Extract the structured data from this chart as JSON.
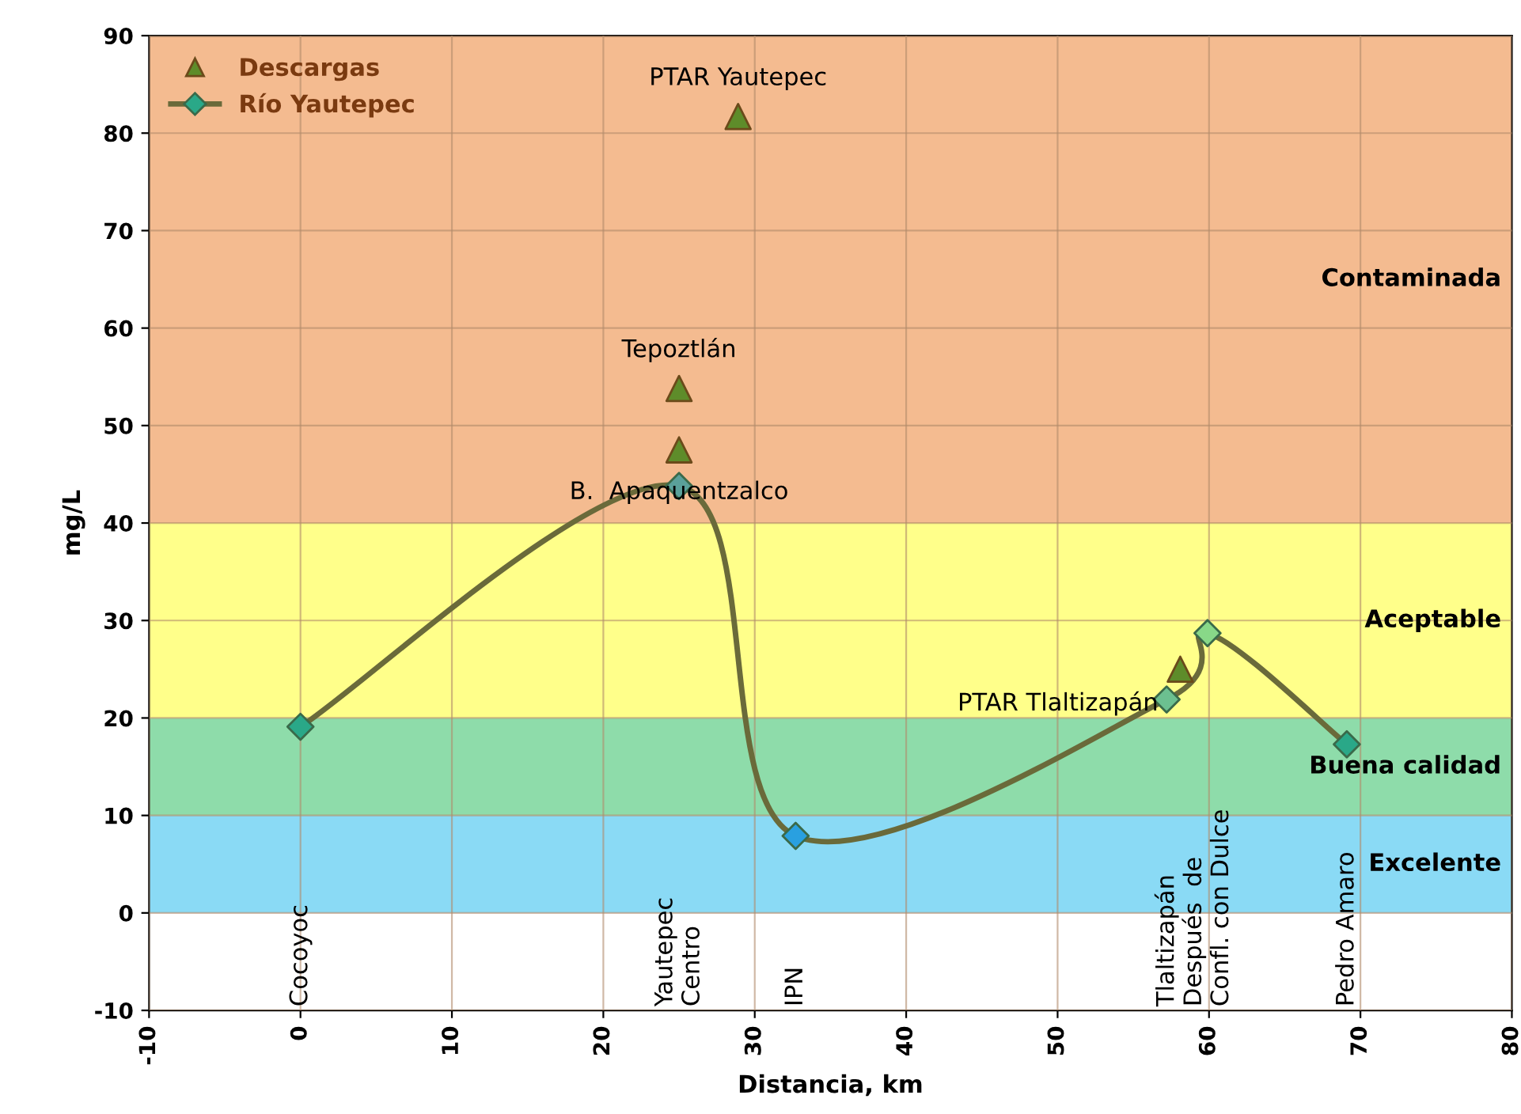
{
  "chart_data": {
    "type": "line",
    "xlabel": "Distancia, km",
    "ylabel": "mg/L",
    "xlim": [
      -10,
      80
    ],
    "xticks": [
      -10,
      0,
      10,
      20,
      30,
      40,
      50,
      60,
      70,
      80
    ],
    "ylim": [
      -10,
      90
    ],
    "yticks": [
      -10,
      0,
      10,
      20,
      30,
      40,
      50,
      60,
      70,
      80,
      90
    ],
    "grid": true,
    "legend": "top left",
    "series": [
      {
        "name": "Descargas",
        "type": "scatter",
        "marker": "triangle",
        "color": "#5e8c2a",
        "x": [
          28.9,
          25,
          25,
          58.1
        ],
        "values": [
          81.7,
          53.8,
          47.5,
          25
        ]
      },
      {
        "name": "Río Yautepec",
        "marker": "diamond",
        "line_style": "solid",
        "color": "#6a6a3a",
        "colors": [
          "#2aa888",
          "#5aa09a",
          "#29a0e0",
          "#6cc090",
          "#88d888",
          "#2aa888"
        ],
        "x": [
          0,
          25,
          32.7,
          57.2,
          59.9,
          69.1
        ],
        "values": [
          19.1,
          43.8,
          7.9,
          21.9,
          28.7,
          17.3
        ]
      }
    ],
    "bands": [
      {
        "axis": "y",
        "from": 0,
        "to": 10,
        "label": "Excelente",
        "color": "#8adaf5"
      },
      {
        "axis": "y",
        "from": 10,
        "to": 20,
        "label": "Buena calidad",
        "color": "#8edcaa"
      },
      {
        "axis": "y",
        "from": 20,
        "to": 40,
        "label": "Aceptable",
        "color": "#ffff8a"
      },
      {
        "axis": "y",
        "from": 40,
        "to": 90,
        "label": "Contaminada",
        "color": "#f4bb90"
      }
    ],
    "annotations": [
      {
        "text": "PTAR Yautepec",
        "x": 28.9,
        "y": 81.7
      },
      {
        "text": "Tepoztlán",
        "x": 25,
        "y": 53.8
      },
      {
        "text": "B.  Apaquentzalco",
        "x": 25,
        "y": 47.5
      },
      {
        "text": "PTAR Tlaltizapán",
        "x": 58.1,
        "y": 25
      },
      "Cocoyoc",
      "Yautepec\nCentro",
      "IPN",
      "Tlaltizapán",
      "Después  de\nConfl. con Dulce",
      "Pedro Amaro"
    ]
  }
}
